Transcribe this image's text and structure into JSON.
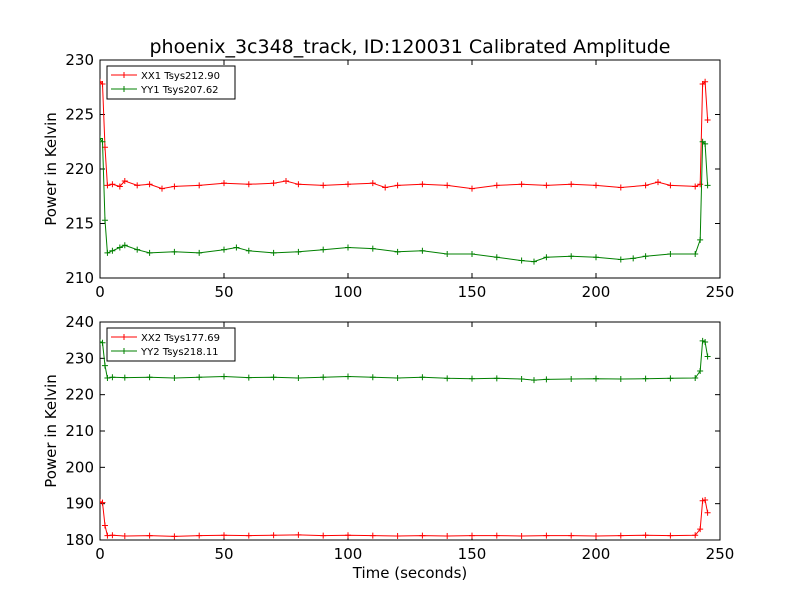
{
  "chart_data": [
    {
      "type": "line",
      "title": "phoenix_3c348_track, ID:120031 Calibrated Amplitude",
      "xlabel": "",
      "ylabel": "Power in Kelvin",
      "xlim": [
        0,
        250
      ],
      "ylim": [
        210,
        230
      ],
      "xticks": [
        "0",
        "50",
        "100",
        "150",
        "200",
        "250"
      ],
      "yticks": [
        "210",
        "215",
        "220",
        "225",
        "230"
      ],
      "legend_position": "top-left",
      "grid": false,
      "series": [
        {
          "name": "XX1 Tsys212.90",
          "color": "#ff0000",
          "marker": "+",
          "x": [
            0,
            1,
            2,
            3,
            5,
            8,
            10,
            15,
            20,
            25,
            30,
            40,
            50,
            60,
            70,
            75,
            80,
            90,
            100,
            110,
            115,
            120,
            130,
            140,
            150,
            160,
            170,
            180,
            190,
            200,
            210,
            220,
            225,
            230,
            240,
            242,
            243,
            244,
            245
          ],
          "y": [
            228.0,
            227.8,
            222.0,
            218.5,
            218.6,
            218.4,
            218.9,
            218.5,
            218.6,
            218.2,
            218.4,
            218.5,
            218.7,
            218.6,
            218.7,
            218.9,
            218.6,
            218.5,
            218.6,
            218.7,
            218.3,
            218.5,
            218.6,
            218.5,
            218.2,
            218.5,
            218.6,
            218.5,
            218.6,
            218.5,
            218.3,
            218.5,
            218.8,
            218.5,
            218.4,
            218.6,
            227.8,
            228.0,
            224.5
          ]
        },
        {
          "name": "YY1 Tsys207.62",
          "color": "#008000",
          "marker": "+",
          "x": [
            0,
            1,
            2,
            3,
            5,
            8,
            10,
            15,
            20,
            30,
            40,
            50,
            55,
            60,
            70,
            80,
            90,
            100,
            110,
            120,
            130,
            140,
            150,
            160,
            170,
            175,
            180,
            190,
            200,
            210,
            215,
            220,
            230,
            240,
            242,
            243,
            244,
            245
          ],
          "y": [
            222.8,
            222.5,
            215.3,
            212.3,
            212.5,
            212.8,
            213.0,
            212.6,
            212.3,
            212.4,
            212.3,
            212.6,
            212.8,
            212.5,
            212.3,
            212.4,
            212.6,
            212.8,
            212.7,
            212.4,
            212.5,
            212.2,
            212.2,
            211.9,
            211.6,
            211.5,
            211.9,
            212.0,
            211.9,
            211.7,
            211.8,
            212.0,
            212.2,
            212.2,
            213.5,
            222.5,
            222.3,
            218.5
          ]
        }
      ]
    },
    {
      "type": "line",
      "title": "",
      "xlabel": "Time (seconds)",
      "ylabel": "Power in Kelvin",
      "xlim": [
        0,
        250
      ],
      "ylim": [
        180,
        240
      ],
      "xticks": [
        "0",
        "50",
        "100",
        "150",
        "200",
        "250"
      ],
      "yticks": [
        "180",
        "190",
        "200",
        "210",
        "220",
        "230",
        "240"
      ],
      "legend_position": "top-left",
      "grid": false,
      "series": [
        {
          "name": "XX2 Tsys177.69",
          "color": "#ff0000",
          "marker": "+",
          "x": [
            0,
            1,
            2,
            3,
            5,
            10,
            20,
            30,
            40,
            50,
            60,
            70,
            80,
            90,
            100,
            110,
            120,
            130,
            140,
            150,
            160,
            170,
            180,
            190,
            200,
            210,
            220,
            230,
            240,
            242,
            243,
            244,
            245
          ],
          "y": [
            190.5,
            190.3,
            184.0,
            181.2,
            181.3,
            181.1,
            181.2,
            181.0,
            181.2,
            181.3,
            181.2,
            181.3,
            181.4,
            181.2,
            181.3,
            181.2,
            181.1,
            181.2,
            181.1,
            181.2,
            181.2,
            181.1,
            181.2,
            181.2,
            181.1,
            181.2,
            181.3,
            181.2,
            181.3,
            183.0,
            190.8,
            191.0,
            187.5
          ]
        },
        {
          "name": "YY2 Tsys218.11",
          "color": "#008000",
          "marker": "+",
          "x": [
            0,
            1,
            2,
            3,
            5,
            10,
            20,
            30,
            40,
            50,
            60,
            70,
            80,
            90,
            100,
            110,
            120,
            130,
            140,
            150,
            160,
            170,
            175,
            180,
            190,
            200,
            210,
            220,
            230,
            240,
            242,
            243,
            244,
            245
          ],
          "y": [
            234.5,
            234.3,
            228.0,
            224.6,
            224.8,
            224.7,
            224.8,
            224.6,
            224.8,
            225.0,
            224.7,
            224.8,
            224.6,
            224.8,
            225.0,
            224.8,
            224.6,
            224.8,
            224.5,
            224.4,
            224.5,
            224.3,
            224.0,
            224.2,
            224.3,
            224.4,
            224.3,
            224.4,
            224.5,
            224.6,
            226.5,
            234.8,
            234.5,
            230.5
          ]
        }
      ]
    }
  ]
}
